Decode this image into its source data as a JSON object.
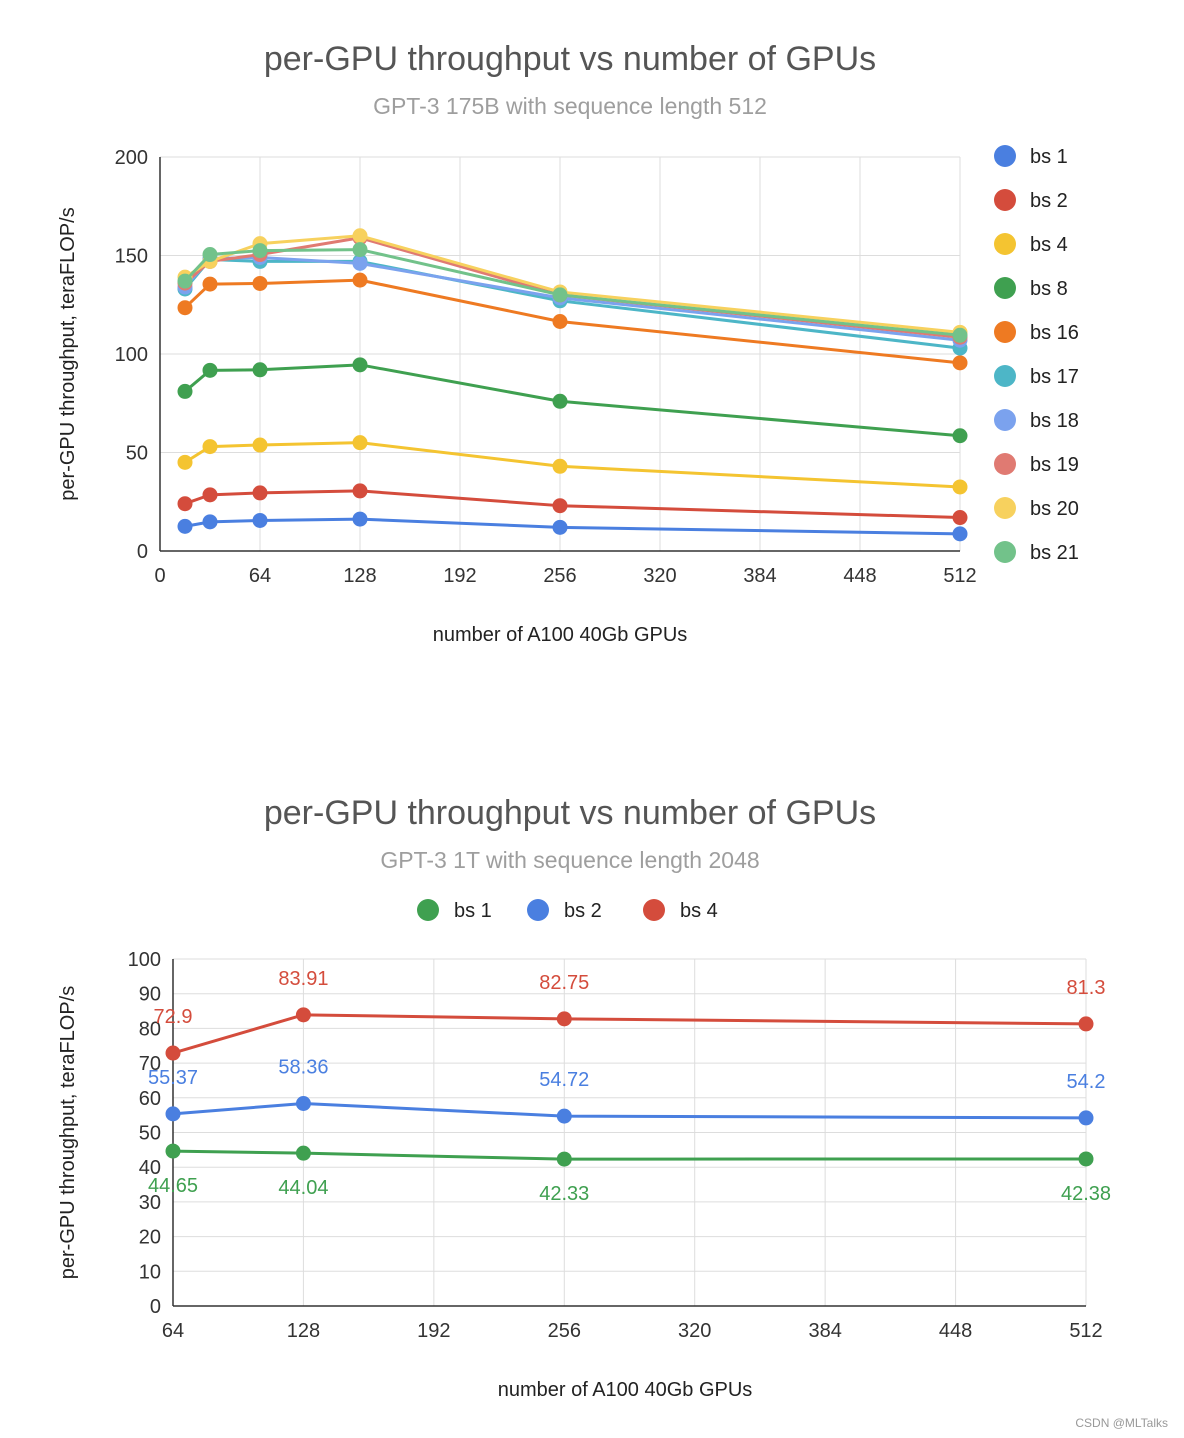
{
  "colors": {
    "text": "#555555",
    "subtitle": "#9e9e9e",
    "grid": "#dddddd",
    "axis": "#333333"
  },
  "watermark": "CSDN @MLTalks",
  "chart_data": [
    {
      "type": "line",
      "title": "per-GPU throughput vs number of GPUs",
      "subtitle": "GPT-3 175B with sequence length 512",
      "xlabel": "number of A100 40Gb GPUs",
      "ylabel": "per-GPU throughput, teraFLOP/s",
      "xlim": [
        0,
        512
      ],
      "ylim": [
        0,
        200
      ],
      "xticks": [
        0,
        64,
        128,
        192,
        256,
        320,
        384,
        448,
        512
      ],
      "yticks": [
        0,
        50,
        100,
        150,
        200
      ],
      "legend_position": "right",
      "x": [
        16,
        32,
        64,
        128,
        256,
        512
      ],
      "series": [
        {
          "name": "bs 1",
          "color": "#4a7fe0",
          "values": [
            12.5,
            14.8,
            15.5,
            16.2,
            12,
            8.7
          ]
        },
        {
          "name": "bs 2",
          "color": "#d44c3c",
          "values": [
            24,
            28.5,
            29.5,
            30.5,
            23,
            17
          ]
        },
        {
          "name": "bs 4",
          "color": "#f4c431",
          "values": [
            45,
            53,
            53.8,
            55,
            43,
            32.5
          ]
        },
        {
          "name": "bs 8",
          "color": "#3fa050",
          "values": [
            81,
            91.7,
            92,
            94.5,
            76,
            58.5
          ]
        },
        {
          "name": "bs 16",
          "color": "#ee7a22",
          "values": [
            123.5,
            135.5,
            135.8,
            137.5,
            116.5,
            95.5
          ]
        },
        {
          "name": "bs 17",
          "color": "#4db6c7",
          "values": [
            133,
            148,
            147,
            147,
            127,
            103
          ]
        },
        {
          "name": "bs 18",
          "color": "#7ba2ee",
          "values": [
            134,
            148.5,
            149,
            146,
            128.5,
            107
          ]
        },
        {
          "name": "bs 19",
          "color": "#e07a72",
          "values": [
            136,
            147,
            150.5,
            159,
            130,
            108.5
          ]
        },
        {
          "name": "bs 20",
          "color": "#f7d15e",
          "values": [
            139,
            147,
            156,
            160,
            131.5,
            111
          ]
        },
        {
          "name": "bs 21",
          "color": "#72c28a",
          "values": [
            137,
            150.5,
            152.5,
            153,
            130,
            109.5
          ]
        }
      ]
    },
    {
      "type": "line",
      "title": "per-GPU throughput vs number of GPUs",
      "subtitle": "GPT-3 1T with sequence length 2048",
      "xlabel": "number of A100 40Gb GPUs",
      "ylabel": "per-GPU throughput, teraFLOP/s",
      "xlim": [
        64,
        512
      ],
      "ylim": [
        0,
        100
      ],
      "xticks": [
        64,
        128,
        192,
        256,
        320,
        384,
        448,
        512
      ],
      "yticks": [
        0,
        10,
        20,
        30,
        40,
        50,
        60,
        70,
        80,
        90,
        100
      ],
      "legend_position": "top",
      "x": [
        64,
        128,
        256,
        512
      ],
      "series": [
        {
          "name": "bs 1",
          "color": "#3fa050",
          "values": [
            44.65,
            44.04,
            42.33,
            42.38
          ],
          "labels": [
            "44.65",
            "44.04",
            "42.33",
            "42.38"
          ]
        },
        {
          "name": "bs 2",
          "color": "#4a7fe0",
          "values": [
            55.37,
            58.36,
            54.72,
            54.2
          ],
          "labels": [
            "55.37",
            "58.36",
            "54.72",
            "54.2"
          ]
        },
        {
          "name": "bs 4",
          "color": "#d44c3c",
          "values": [
            72.9,
            83.91,
            82.75,
            81.3
          ],
          "labels": [
            "72.9",
            "83.91",
            "82.75",
            "81.3"
          ]
        }
      ]
    }
  ]
}
